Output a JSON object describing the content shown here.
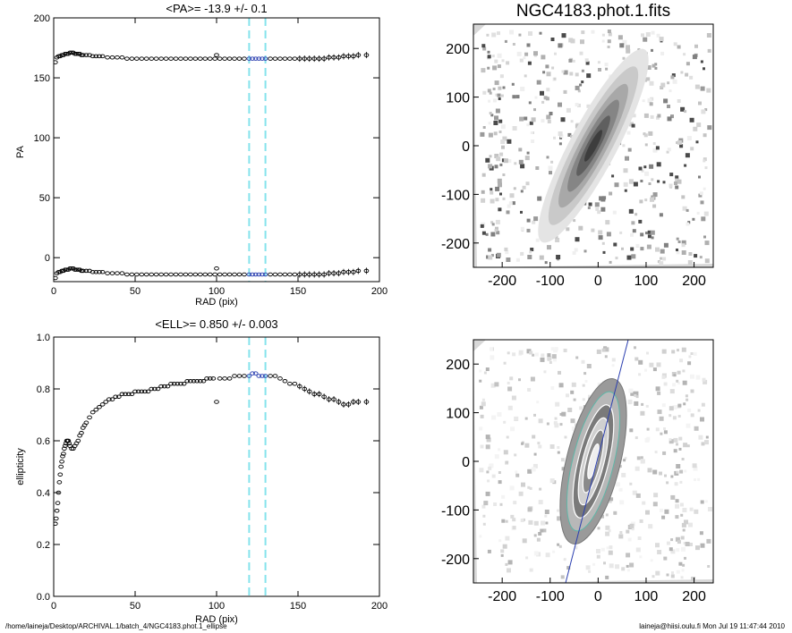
{
  "colors": {
    "marker": "#000000",
    "highlight": "#2b3fb0",
    "band": "#86e3ec",
    "grey_bg": "#d8d8d8"
  },
  "chart_data": [
    {
      "type": "scatter",
      "title": "<PA>= -13.9 +/-   0.1",
      "xlabel": "RAD (pix)",
      "ylabel": "PA",
      "xlim": [
        0,
        200
      ],
      "ylim": [
        -20,
        200
      ],
      "xticks": [
        "0",
        "50",
        "100",
        "150",
        "200"
      ],
      "yticks": [
        "0",
        "50",
        "100",
        "150",
        "200"
      ],
      "band": [
        120,
        130
      ],
      "series": [
        {
          "x": [
            1,
            2,
            3,
            4,
            5,
            6,
            7,
            8,
            9,
            10,
            11,
            12,
            13,
            14,
            15,
            16,
            17,
            18,
            20,
            22,
            24,
            26,
            28,
            30,
            33,
            36,
            39,
            42,
            45,
            48,
            51,
            54,
            57,
            60,
            63,
            66,
            69,
            72,
            75,
            78,
            81,
            84,
            87,
            90,
            93,
            96,
            99,
            102,
            105,
            108,
            111,
            114,
            117,
            120,
            122,
            124,
            126,
            128,
            130,
            133,
            136,
            139,
            142,
            145,
            148,
            151,
            154,
            157,
            160,
            163,
            166,
            169,
            172,
            175,
            178,
            181,
            184,
            187,
            192
          ],
          "y": [
            163,
            167,
            168,
            168,
            169,
            169,
            170,
            170,
            170,
            171,
            171,
            171,
            170,
            170,
            170,
            170,
            169,
            169,
            169,
            169,
            168,
            168,
            168,
            168,
            167,
            167,
            167,
            167,
            166,
            166,
            166,
            166,
            166,
            166,
            166,
            166,
            166,
            166,
            166,
            166,
            166,
            166,
            166,
            166,
            166,
            166,
            166,
            166,
            166,
            166,
            166,
            166,
            166,
            166,
            166,
            166,
            166,
            166,
            166,
            166,
            166,
            166,
            166,
            166,
            166,
            166,
            166,
            166,
            166,
            166,
            166,
            167,
            167,
            167,
            168,
            168,
            168,
            169,
            169
          ]
        },
        {
          "x": [
            1,
            2,
            3,
            4,
            5,
            6,
            7,
            8,
            9,
            10,
            11,
            12,
            13,
            14,
            15,
            16,
            17,
            18,
            20,
            22,
            24,
            26,
            28,
            30,
            33,
            36,
            39,
            42,
            45,
            48,
            51,
            54,
            57,
            60,
            63,
            66,
            69,
            72,
            75,
            78,
            81,
            84,
            87,
            90,
            93,
            96,
            99,
            102,
            105,
            108,
            111,
            114,
            117,
            120,
            122,
            124,
            126,
            128,
            130,
            133,
            136,
            139,
            142,
            145,
            148,
            151,
            154,
            157,
            160,
            163,
            166,
            169,
            172,
            175,
            178,
            181,
            184,
            187,
            192
          ],
          "y": [
            -17,
            -13,
            -12,
            -12,
            -11,
            -11,
            -10,
            -10,
            -10,
            -9,
            -9,
            -9,
            -10,
            -10,
            -10,
            -10,
            -11,
            -11,
            -11,
            -11,
            -12,
            -12,
            -12,
            -12,
            -13,
            -13,
            -13,
            -13,
            -14,
            -14,
            -14,
            -14,
            -14,
            -14,
            -14,
            -14,
            -14,
            -14,
            -14,
            -14,
            -14,
            -14,
            -14,
            -14,
            -14,
            -14,
            -14,
            -14,
            -14,
            -14,
            -14,
            -14,
            -14,
            -14,
            -14,
            -14,
            -14,
            -14,
            -14,
            -14,
            -14,
            -14,
            -14,
            -14,
            -14,
            -14,
            -14,
            -14,
            -14,
            -14,
            -14,
            -13,
            -13,
            -13,
            -12,
            -12,
            -12,
            -11,
            -11
          ]
        }
      ],
      "outliers": [
        {
          "x": 100,
          "y": 169
        },
        {
          "x": 100,
          "y": -9
        }
      ]
    },
    {
      "type": "scatter",
      "title": "<ELL>= 0.850 +/-  0.003",
      "xlabel": "RAD (pix)",
      "ylabel": "ellipticity",
      "xlim": [
        0,
        200
      ],
      "ylim": [
        0,
        1
      ],
      "xticks": [
        "0",
        "50",
        "100",
        "150",
        "200"
      ],
      "yticks": [
        "0.0",
        "0.2",
        "0.4",
        "0.6",
        "0.8",
        "1.0"
      ],
      "band": [
        120,
        130
      ],
      "series": [
        {
          "x": [
            1,
            1.5,
            2,
            2.5,
            3,
            3.5,
            4,
            4.5,
            5,
            5.5,
            6,
            6.5,
            7,
            7.5,
            8,
            8.5,
            9,
            9.5,
            10,
            11,
            12,
            13,
            14,
            15,
            16,
            17,
            18,
            19,
            20,
            22,
            24,
            26,
            28,
            30,
            32,
            34,
            36,
            38,
            40,
            42,
            44,
            46,
            48,
            50,
            52,
            54,
            56,
            58,
            60,
            62,
            64,
            66,
            68,
            70,
            72,
            74,
            76,
            78,
            80,
            82,
            84,
            86,
            88,
            90,
            92,
            94,
            96,
            98,
            102,
            105,
            108,
            111,
            114,
            117,
            120,
            122,
            124,
            126,
            128,
            130,
            133,
            136,
            139,
            142,
            145,
            148,
            151,
            154,
            157,
            160,
            163,
            166,
            169,
            172,
            175,
            178,
            181,
            184,
            187,
            192
          ],
          "y": [
            0.28,
            0.3,
            0.33,
            0.36,
            0.4,
            0.44,
            0.47,
            0.5,
            0.52,
            0.54,
            0.55,
            0.57,
            0.58,
            0.59,
            0.6,
            0.6,
            0.6,
            0.59,
            0.58,
            0.57,
            0.57,
            0.58,
            0.59,
            0.6,
            0.62,
            0.63,
            0.65,
            0.66,
            0.67,
            0.69,
            0.71,
            0.72,
            0.73,
            0.74,
            0.75,
            0.76,
            0.76,
            0.77,
            0.77,
            0.78,
            0.78,
            0.78,
            0.78,
            0.79,
            0.79,
            0.79,
            0.79,
            0.79,
            0.8,
            0.8,
            0.8,
            0.81,
            0.81,
            0.81,
            0.82,
            0.82,
            0.82,
            0.82,
            0.82,
            0.83,
            0.83,
            0.83,
            0.83,
            0.83,
            0.83,
            0.84,
            0.84,
            0.84,
            0.84,
            0.84,
            0.84,
            0.85,
            0.85,
            0.85,
            0.85,
            0.86,
            0.86,
            0.85,
            0.85,
            0.85,
            0.85,
            0.85,
            0.84,
            0.83,
            0.82,
            0.82,
            0.81,
            0.8,
            0.79,
            0.78,
            0.78,
            0.77,
            0.76,
            0.76,
            0.75,
            0.74,
            0.74,
            0.75,
            0.75,
            0.75
          ]
        }
      ],
      "outliers": [
        {
          "x": 100,
          "y": 0.75
        }
      ]
    }
  ],
  "images": [
    {
      "title": "NGC4183.phot.1.fits",
      "xlim": [
        -260,
        240
      ],
      "ylim": [
        -250,
        250
      ],
      "xticks": [
        "-200",
        "-100",
        "0",
        "100",
        "200"
      ],
      "yticks": [
        "-200",
        "-100",
        "0",
        "100",
        "200"
      ]
    },
    {
      "title": "",
      "xlim": [
        -260,
        240
      ],
      "ylim": [
        -250,
        250
      ],
      "xticks": [
        "-200",
        "-100",
        "0",
        "100",
        "200"
      ],
      "yticks": [
        "-200",
        "-100",
        "0",
        "100",
        "200"
      ],
      "major_axis_pa_deg": -13.9
    }
  ],
  "footer": {
    "left": "/home/laineja/Desktop/ARCHIVAL.1/batch_4/NGC4183.phot.1_ellipse",
    "right": "laineja@hiisi.oulu.fi  Mon Jul 19 11:47:44 2010"
  }
}
